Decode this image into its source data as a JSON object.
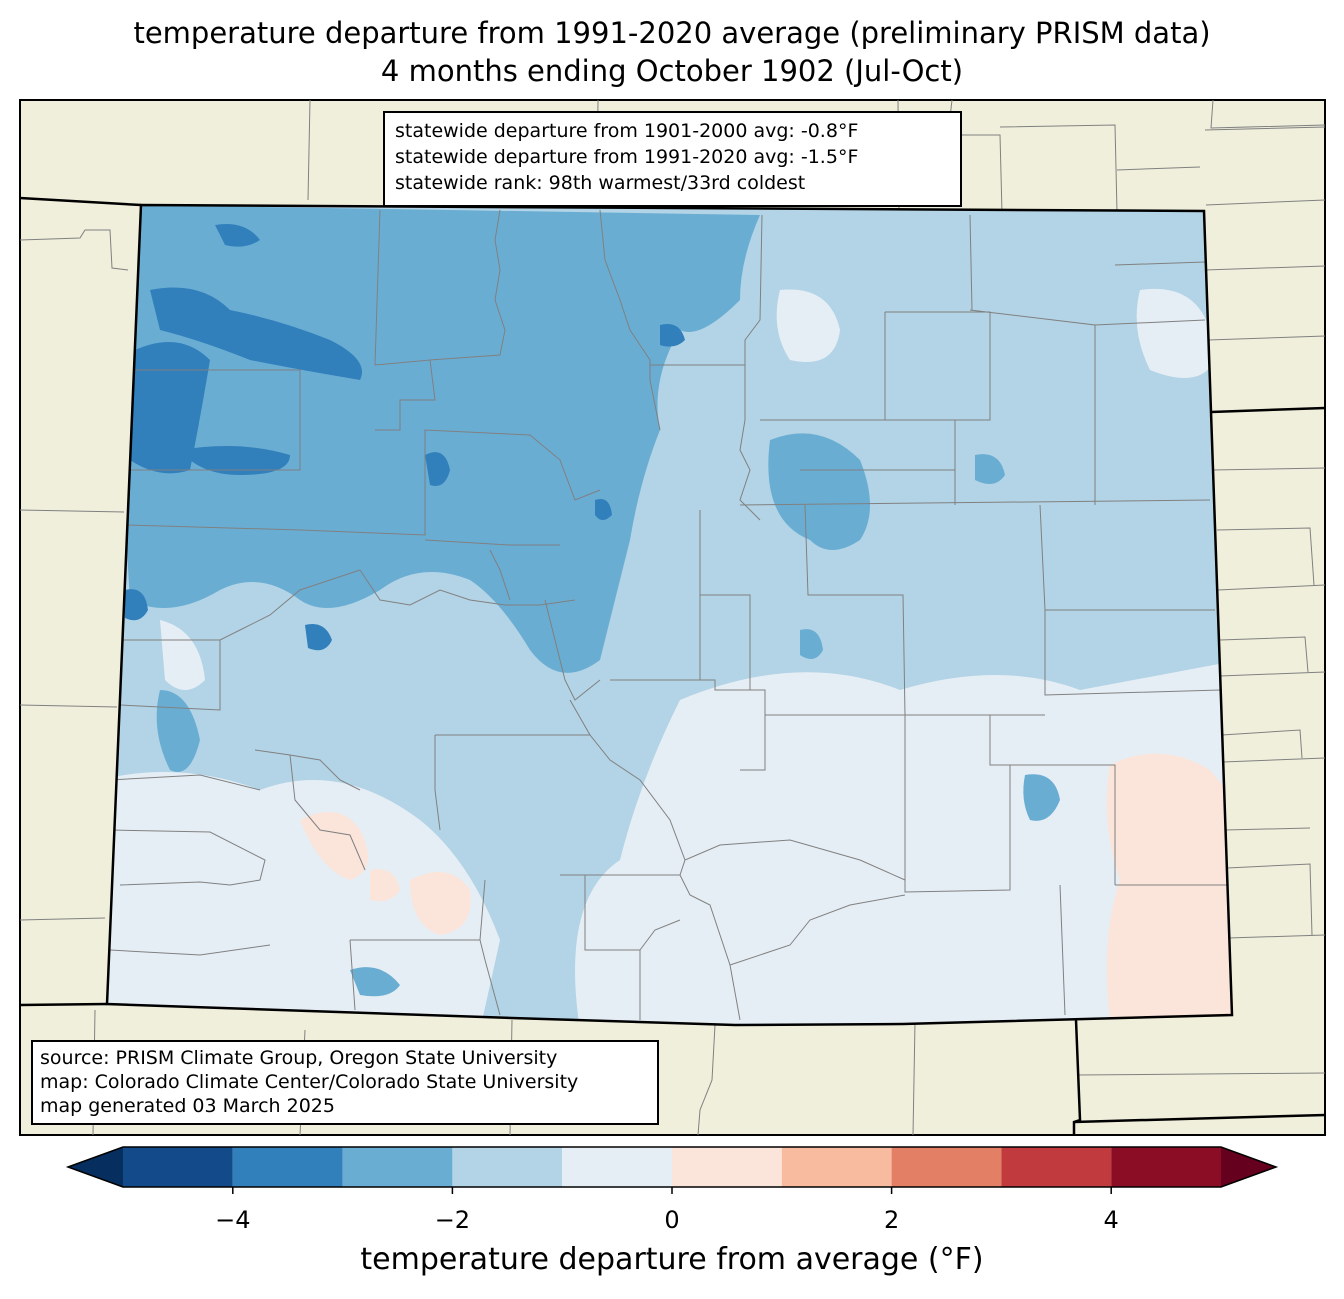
{
  "title": {
    "line1": "temperature departure from 1991-2020 average (preliminary PRISM data)",
    "line2": "4 months ending October 1902 (Jul-Oct)"
  },
  "stats": {
    "line1": "statewide departure from 1901-2000 avg: -0.8°F",
    "line2": "statewide departure from 1991-2020 avg: -1.5°F",
    "line3": "statewide rank: 98th warmest/33rd coldest"
  },
  "credits": {
    "line1": "source: PRISM Climate Group, Oregon State University",
    "line2": "map: Colorado Climate Center/Colorado State University",
    "line3": "map generated 03 March 2025"
  },
  "colorbar": {
    "label": "temperature departure from average (°F)",
    "min": -5,
    "max": 5,
    "step": 1,
    "ticks": [
      {
        "value": -4,
        "label": "−4"
      },
      {
        "value": -2,
        "label": "−2"
      },
      {
        "value": 0,
        "label": "0"
      },
      {
        "value": 2,
        "label": "2"
      },
      {
        "value": 4,
        "label": "4"
      }
    ],
    "colors": [
      "#134b8a",
      "#3180bc",
      "#6aadd3",
      "#b3d4e6",
      "#e6eef5",
      "#fbe5da",
      "#f8bba0",
      "#e37f65",
      "#c13a3d",
      "#8b0c25"
    ],
    "under_color": "#062f5f",
    "over_color": "#65001f"
  },
  "map_colors": {
    "background": "#f0efdc",
    "state_border": "#000000",
    "county_border": "#808080"
  }
}
